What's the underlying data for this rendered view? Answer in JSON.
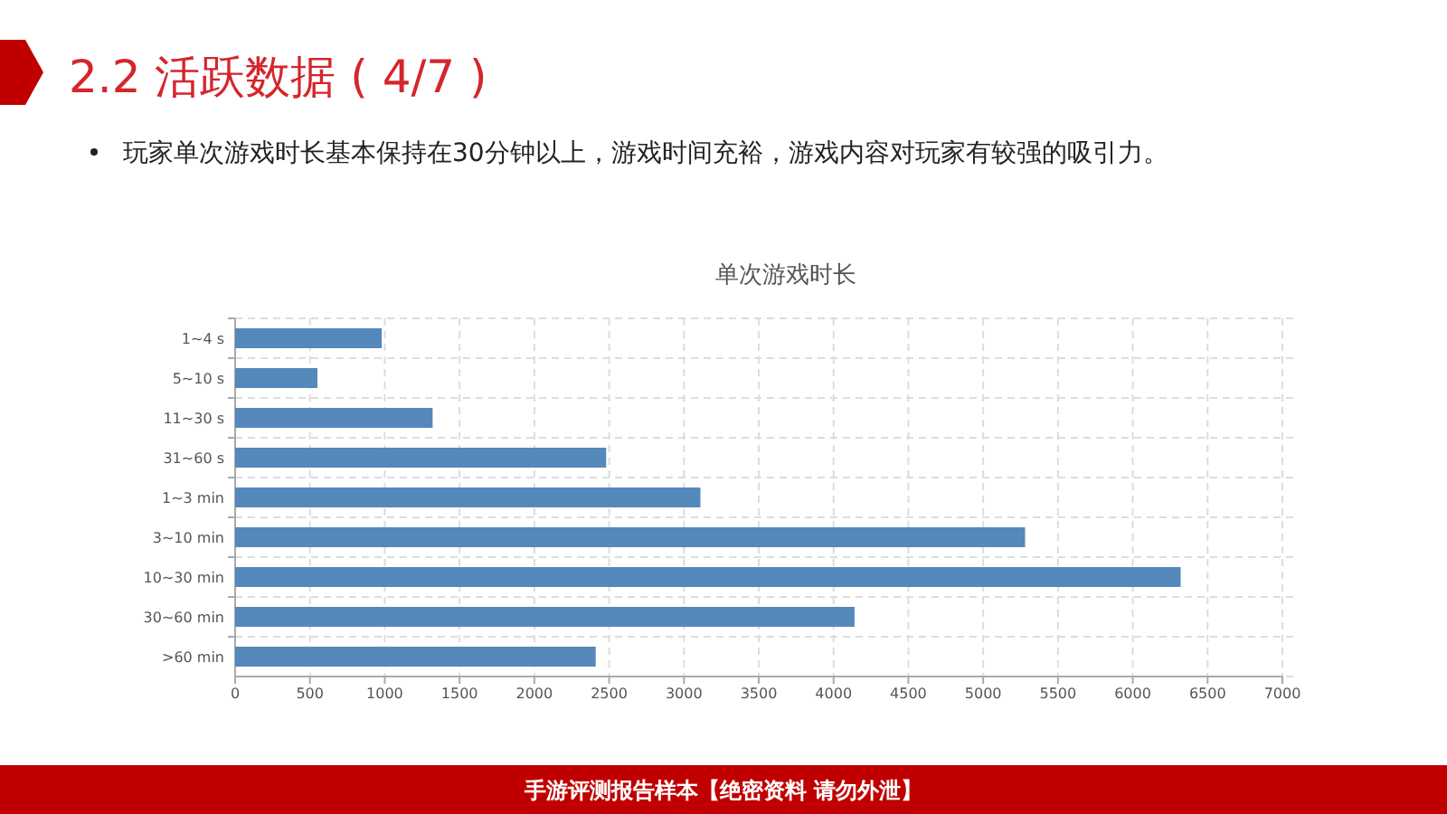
{
  "chart_data": {
    "type": "bar",
    "orientation": "horizontal",
    "title": "单次游戏时长",
    "categories": [
      "1~4 s",
      "5~10 s",
      "11~30 s",
      "31~60 s",
      "1~3 min",
      "3~10 min",
      "10~30 min",
      "30~60 min",
      ">60 min"
    ],
    "values": [
      980,
      550,
      1320,
      2480,
      3110,
      5280,
      6320,
      4140,
      2410
    ],
    "color": "#5588bb",
    "xlim": [
      0,
      7000
    ],
    "xticks": [
      0,
      500,
      1000,
      1500,
      2000,
      2500,
      3000,
      3500,
      4000,
      4500,
      5000,
      5500,
      6000,
      6500,
      7000
    ],
    "grid": true,
    "annotations": [
      "2.2  活跃数据 ( 4/7 )",
      "玩家单次游戏时长基本保持在30分钟以上，游戏时间充裕，游戏内容对玩家有较强的吸引力。",
      "手游评测报告样本【绝密资料 请勿外泄】"
    ]
  }
}
